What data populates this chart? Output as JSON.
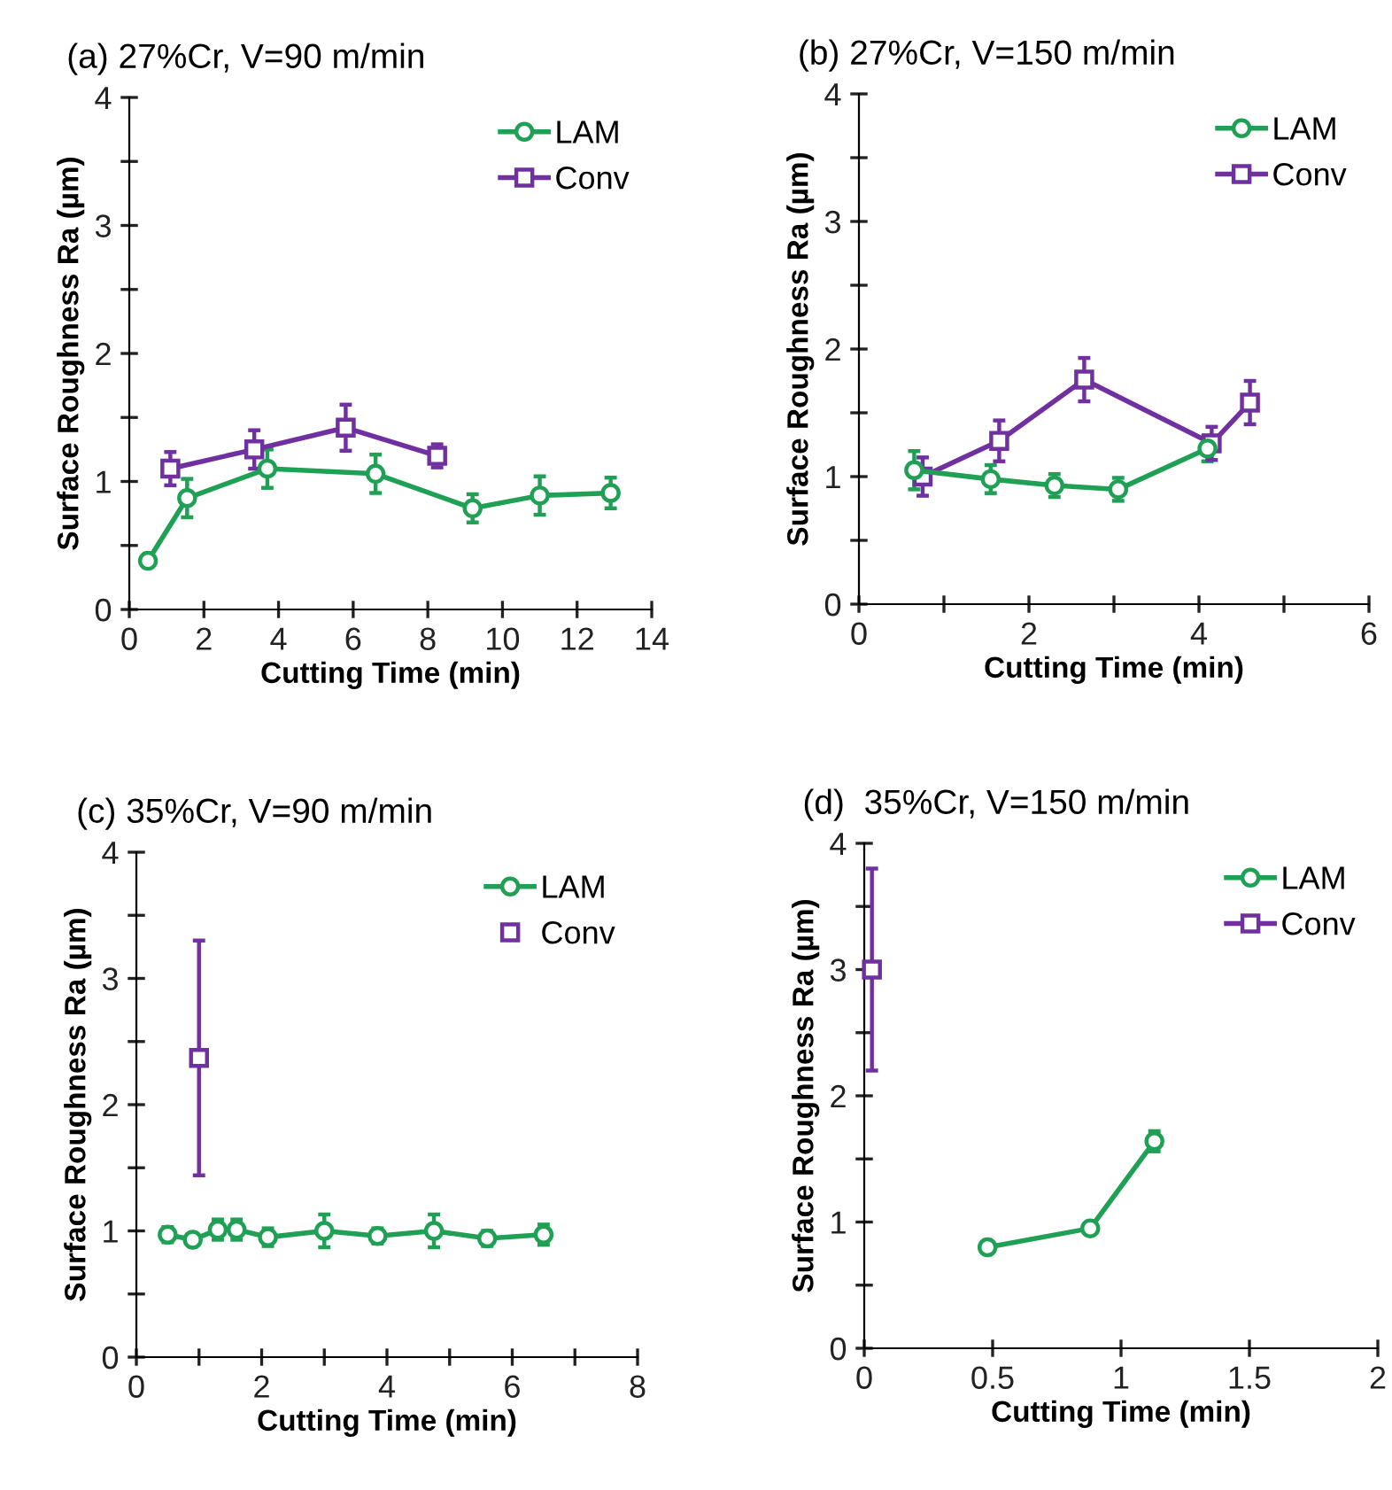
{
  "chart_data": [
    {
      "type": "line",
      "title": "(a) 27%Cr, V=90 m/min",
      "xlabel": "Cutting Time (min)",
      "ylabel": "Surface Roughness Ra (µm)",
      "xlim": [
        0,
        14
      ],
      "xticks": [
        0,
        2,
        4,
        6,
        8,
        10,
        12,
        14
      ],
      "ylim": [
        0,
        4
      ],
      "yticks": [
        0,
        {
          "value": 0.5,
          "label": null
        },
        1,
        {
          "value": 1.5,
          "label": null
        },
        2,
        {
          "value": 2.5,
          "label": null
        },
        3,
        {
          "value": 3.5,
          "label": null
        },
        4
      ],
      "grid": false,
      "legend": "top right",
      "series": [
        {
          "name": "LAM",
          "color": "#1fa055",
          "marker": "circle",
          "line_style": "solid",
          "x": [
            0.5,
            1.55,
            3.7,
            6.6,
            9.2,
            11,
            12.9
          ],
          "values": [
            0.38,
            0.87,
            1.1,
            1.06,
            0.79,
            0.89,
            0.91
          ],
          "errors": [
            null,
            0.15,
            0.15,
            0.15,
            0.11,
            0.15,
            0.12
          ]
        },
        {
          "name": "Conv",
          "color": "#7030a0",
          "marker": "square",
          "line_style": "solid",
          "x": [
            1.1,
            3.35,
            5.8,
            8.25
          ],
          "values": [
            1.1,
            1.25,
            1.42,
            1.2
          ],
          "errors": [
            0.13,
            0.15,
            0.18,
            0.09
          ]
        }
      ]
    },
    {
      "type": "line",
      "title": "(b) 27%Cr, V=150 m/min",
      "xlabel": "Cutting Time (min)",
      "ylabel": "Surface Roughness Ra (µm)",
      "xlim": [
        0,
        6
      ],
      "xticks": [
        0,
        {
          "value": 1,
          "label": null
        },
        2,
        {
          "value": 3,
          "label": null
        },
        4,
        {
          "value": 5,
          "label": null
        },
        6
      ],
      "ylim": [
        0,
        4
      ],
      "yticks": [
        0,
        {
          "value": 0.5,
          "label": null
        },
        1,
        {
          "value": 1.5,
          "label": null
        },
        2,
        {
          "value": 2.5,
          "label": null
        },
        3,
        {
          "value": 3.5,
          "label": null
        },
        4
      ],
      "grid": false,
      "legend": "top right",
      "series": [
        {
          "name": "LAM",
          "color": "#1fa055",
          "marker": "circle",
          "line_style": "solid",
          "x": [
            0.65,
            1.55,
            2.3,
            3.05,
            4.1
          ],
          "values": [
            1.05,
            0.98,
            0.93,
            0.9,
            1.22
          ],
          "errors": [
            0.15,
            0.11,
            0.09,
            0.09,
            0.1
          ]
        },
        {
          "name": "Conv",
          "color": "#7030a0",
          "marker": "square",
          "line_style": "solid",
          "x": [
            0.75,
            1.65,
            2.65,
            4.15,
            4.6
          ],
          "values": [
            1.0,
            1.28,
            1.76,
            1.26,
            1.58
          ],
          "errors": [
            0.15,
            0.16,
            0.17,
            0.13,
            0.17
          ]
        }
      ]
    },
    {
      "type": "line",
      "title": "(c) 35%Cr, V=90 m/min",
      "xlabel": "Cutting Time (min)",
      "ylabel": "Surface Roughness Ra (µm)",
      "xlim": [
        0,
        8
      ],
      "xticks": [
        0,
        {
          "value": 1,
          "label": null
        },
        2,
        {
          "value": 3,
          "label": null
        },
        4,
        {
          "value": 5,
          "label": null
        },
        6,
        {
          "value": 7,
          "label": null
        },
        8
      ],
      "ylim": [
        0,
        4
      ],
      "yticks": [
        0,
        {
          "value": 0.5,
          "label": null
        },
        1,
        {
          "value": 1.5,
          "label": null
        },
        2,
        {
          "value": 2.5,
          "label": null
        },
        3,
        {
          "value": 3.5,
          "label": null
        },
        4
      ],
      "grid": false,
      "legend": "top right",
      "series": [
        {
          "name": "LAM",
          "color": "#1fa055",
          "marker": "circle",
          "line_style": "solid",
          "x": [
            0.5,
            0.9,
            1.3,
            1.6,
            2.1,
            3.0,
            3.85,
            4.75,
            5.6,
            6.5
          ],
          "values": [
            0.97,
            0.93,
            1.01,
            1.01,
            0.95,
            1.0,
            0.96,
            1.0,
            0.94,
            0.97
          ],
          "errors": [
            0.06,
            0.04,
            0.08,
            0.08,
            0.07,
            0.13,
            0.06,
            0.13,
            0.06,
            0.08
          ]
        },
        {
          "name": "Conv",
          "color": "#7030a0",
          "marker": "square",
          "line_style": "none",
          "x": [
            1.0
          ],
          "values": [
            2.37
          ],
          "errors": [
            0.93
          ]
        }
      ]
    },
    {
      "type": "line",
      "title": "(d)  35%Cr, V=150 m/min",
      "xlabel": "Cutting Time (min)",
      "ylabel": "Surface Roughness Ra (µm)",
      "xlim": [
        0,
        2
      ],
      "xticks": [
        0,
        0.5,
        1,
        1.5,
        2
      ],
      "ylim": [
        0,
        4
      ],
      "yticks": [
        0,
        {
          "value": 0.5,
          "label": null
        },
        1,
        {
          "value": 1.5,
          "label": null
        },
        2,
        {
          "value": 2.5,
          "label": null
        },
        3,
        {
          "value": 3.5,
          "label": null
        },
        4
      ],
      "grid": false,
      "legend": "top right",
      "series": [
        {
          "name": "LAM",
          "color": "#1fa055",
          "marker": "circle",
          "line_style": "solid",
          "x": [
            0.48,
            0.88,
            1.13
          ],
          "values": [
            0.8,
            0.95,
            1.64
          ],
          "errors": [
            0.04,
            0.04,
            0.08
          ]
        },
        {
          "name": "Conv",
          "color": "#7030a0",
          "marker": "square",
          "line_style": "solid",
          "x": [
            0.03
          ],
          "values": [
            3.0
          ],
          "errors": [
            0.8
          ]
        }
      ]
    }
  ]
}
